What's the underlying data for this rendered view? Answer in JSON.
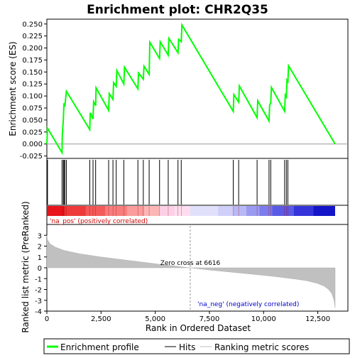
{
  "chart_data": {
    "type": "line",
    "title": "Enrichment plot: CHR2Q35",
    "es_panel": {
      "ylabel": "Enrichment score (ES)",
      "ylim": [
        -0.03,
        0.26
      ],
      "yticks": [
        "-0.025",
        "0.000",
        "0.025",
        "0.050",
        "0.075",
        "0.100",
        "0.125",
        "0.150",
        "0.175",
        "0.200",
        "0.225",
        "0.250"
      ],
      "ytick_values": [
        -0.025,
        0.0,
        0.025,
        0.05,
        0.075,
        0.1,
        0.125,
        0.15,
        0.175,
        0.2,
        0.225,
        0.25
      ],
      "series": [
        {
          "name": "Enrichment profile",
          "color": "#00ff00",
          "x": [
            0,
            30,
            700,
            710,
            760,
            790,
            830,
            900,
            1980,
            2000,
            2130,
            2160,
            2250,
            2270,
            2850,
            2880,
            3050,
            3080,
            3200,
            3230,
            3550,
            3580,
            4200,
            4230,
            4450,
            4480,
            4720,
            4750,
            5200,
            5230,
            5600,
            5630,
            6050,
            6080,
            6200,
            6230,
            8600,
            8630,
            8850,
            8880,
            9700,
            9730,
            10250,
            10280,
            10330,
            10360,
            10970,
            11000,
            11050,
            11080,
            11120,
            11150,
            13300
          ],
          "y": [
            0.0,
            0.033,
            -0.018,
            0.018,
            0.05,
            0.085,
            0.078,
            0.11,
            0.03,
            0.065,
            0.052,
            0.088,
            0.08,
            0.117,
            0.07,
            0.105,
            0.093,
            0.128,
            0.12,
            0.153,
            0.125,
            0.16,
            0.115,
            0.148,
            0.135,
            0.162,
            0.145,
            0.212,
            0.178,
            0.213,
            0.185,
            0.22,
            0.19,
            0.218,
            0.213,
            0.248,
            0.068,
            0.103,
            0.087,
            0.121,
            0.055,
            0.09,
            0.048,
            0.082,
            0.085,
            0.118,
            0.068,
            0.102,
            0.098,
            0.133,
            0.13,
            0.163,
            0.0
          ]
        }
      ]
    },
    "hits": [
      30,
      700,
      760,
      790,
      830,
      900,
      1980,
      2130,
      2250,
      2850,
      3050,
      3200,
      3550,
      4200,
      4450,
      4720,
      5200,
      5600,
      6050,
      6200,
      8600,
      8850,
      9700,
      10250,
      10330,
      10970,
      11050,
      11120
    ],
    "rank_panel": {
      "ylabel": "Ranked list metric (PreRanked)",
      "xlabel": "Rank in Ordered Dataset",
      "ylim": [
        -4,
        4
      ],
      "yticks": [
        "-4",
        "-3",
        "-2",
        "-1",
        "0",
        "1",
        "2",
        "3"
      ],
      "ytick_values": [
        -4,
        -3,
        -2,
        -1,
        0,
        1,
        2,
        3
      ],
      "xlim": [
        0,
        13300
      ],
      "xticks": [
        "0",
        "2,500",
        "5,000",
        "7,500",
        "10,000",
        "12,500"
      ],
      "xtick_values": [
        0,
        2500,
        5000,
        7500,
        10000,
        12500
      ],
      "zero_cross": 6616,
      "zero_cross_label": "Zero cross at 6616",
      "pos_label": "'na_pos' (positively correlated)",
      "neg_label": "'na_neg' (negatively correlated)",
      "metric_curve": {
        "x": [
          0,
          30,
          150,
          400,
          800,
          1500,
          2500,
          3500,
          4500,
          5500,
          6616,
          7500,
          8500,
          9500,
          10500,
          11500,
          12000,
          12500,
          12800,
          13000,
          13150,
          13250,
          13300
        ],
        "y": [
          3.0,
          2.6,
          2.2,
          1.9,
          1.6,
          1.3,
          1.0,
          0.75,
          0.5,
          0.25,
          0.0,
          -0.2,
          -0.4,
          -0.6,
          -0.8,
          -1.05,
          -1.2,
          -1.45,
          -1.7,
          -2.0,
          -2.4,
          -3.0,
          -3.7
        ]
      }
    },
    "legend": [
      {
        "label": "Enrichment profile",
        "color": "#00ff00"
      },
      {
        "label": "Hits",
        "color": "#000000"
      },
      {
        "label": "Ranking metric scores",
        "color": "#c0c0c0"
      }
    ]
  }
}
